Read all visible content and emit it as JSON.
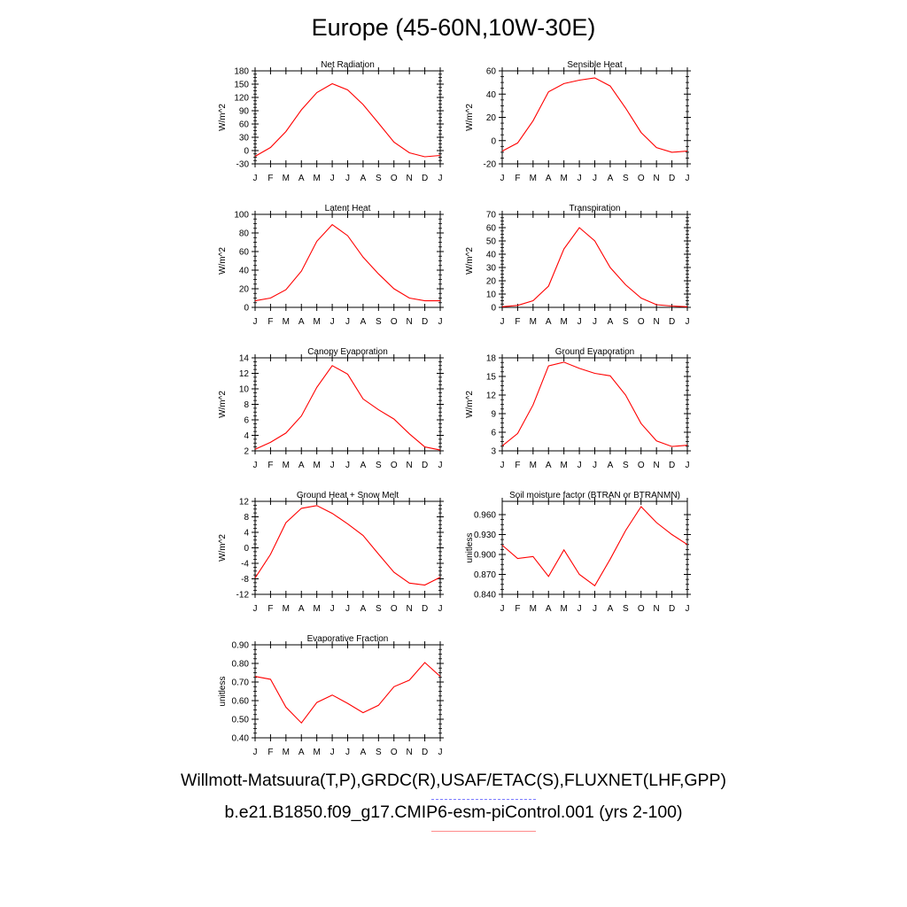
{
  "title": "Europe (45-60N,10W-30E)",
  "months": [
    "J",
    "F",
    "M",
    "A",
    "M",
    "J",
    "J",
    "A",
    "S",
    "O",
    "N",
    "D",
    "J"
  ],
  "legend": {
    "observations": "Willmott-Matsuura(T,P),GRDC(R),USAF/ETAC(S),FLUXNET(LHF,GPP)",
    "observations_color": "#7a7aff",
    "model": "b.e21.B1850.f09_g17.CMIP6-esm-piControl.001 (yrs 2-100)",
    "model_color": "#ff0000"
  },
  "line_color": "#ff0000",
  "chart_data": [
    {
      "type": "line",
      "title": "Net Radiation",
      "ylabel": "W/m^2",
      "ylim": [
        -30,
        180
      ],
      "yticks": [
        -30,
        0,
        30,
        60,
        90,
        120,
        150,
        180
      ],
      "ytick_labels": [
        "-30",
        "0",
        "30",
        "60",
        "90",
        "120",
        "150",
        "180"
      ],
      "series": [
        {
          "values": [
            -13,
            7,
            43,
            92,
            131,
            151,
            137,
            104,
            62,
            19,
            -5,
            -14,
            -11
          ]
        }
      ]
    },
    {
      "type": "line",
      "title": "Sensible Heat",
      "ylabel": "W/m^2",
      "ylim": [
        -20,
        60
      ],
      "yticks": [
        -20,
        0,
        20,
        40,
        60
      ],
      "ytick_labels": [
        "-20",
        "0",
        "20",
        "40",
        "60"
      ],
      "series": [
        {
          "values": [
            -9,
            -2,
            17,
            42,
            49,
            52,
            54,
            47,
            28,
            7,
            -6,
            -10,
            -9
          ]
        }
      ]
    },
    {
      "type": "line",
      "title": "Latent Heat",
      "ylabel": "W/m^2",
      "ylim": [
        0,
        100
      ],
      "yticks": [
        0,
        20,
        40,
        60,
        80,
        100
      ],
      "ytick_labels": [
        "0",
        "20",
        "40",
        "60",
        "80",
        "100"
      ],
      "series": [
        {
          "values": [
            7,
            10,
            19,
            39,
            71,
            89,
            77,
            54,
            36,
            20,
            10,
            7,
            7
          ]
        }
      ]
    },
    {
      "type": "line",
      "title": "Transpiration",
      "ylabel": "W/m^2",
      "ylim": [
        0,
        70
      ],
      "yticks": [
        0,
        10,
        20,
        30,
        40,
        50,
        60,
        70
      ],
      "ytick_labels": [
        "0",
        "10",
        "20",
        "30",
        "40",
        "50",
        "60",
        "70"
      ],
      "series": [
        {
          "values": [
            0.5,
            1.5,
            5,
            16,
            44,
            60,
            50,
            30,
            17,
            7,
            2,
            1,
            0.5
          ]
        }
      ]
    },
    {
      "type": "line",
      "title": "Canopy Evaporation",
      "ylabel": "W/m^2",
      "ylim": [
        2,
        14
      ],
      "yticks": [
        2,
        4,
        6,
        8,
        10,
        12,
        14
      ],
      "ytick_labels": [
        "2",
        "4",
        "6",
        "8",
        "10",
        "12",
        "14"
      ],
      "series": [
        {
          "values": [
            2.2,
            3.1,
            4.3,
            6.5,
            10.2,
            13,
            11.9,
            8.7,
            7.3,
            6.1,
            4.2,
            2.5,
            2.1
          ]
        }
      ]
    },
    {
      "type": "line",
      "title": "Ground Evaporation",
      "ylabel": "W/m^2",
      "ylim": [
        3,
        18
      ],
      "yticks": [
        3,
        6,
        9,
        12,
        15,
        18
      ],
      "ytick_labels": [
        "3",
        "6",
        "9",
        "12",
        "15",
        "18"
      ],
      "series": [
        {
          "values": [
            3.8,
            5.8,
            10.4,
            16.7,
            17.3,
            16.3,
            15.5,
            15.1,
            12,
            7.4,
            4.6,
            3.7,
            3.9
          ]
        }
      ]
    },
    {
      "type": "line",
      "title": "Ground Heat + Snow Melt",
      "ylabel": "W/m^2",
      "ylim": [
        -12,
        12
      ],
      "yticks": [
        -12,
        -8,
        -4,
        0,
        4,
        8,
        12
      ],
      "ytick_labels": [
        "-12",
        "-8",
        "-4",
        "0",
        "4",
        "8",
        "12"
      ],
      "series": [
        {
          "values": [
            -7.8,
            -1.7,
            6.5,
            10.2,
            10.9,
            8.9,
            6.2,
            3.2,
            -1.6,
            -6.3,
            -9.1,
            -9.6,
            -7.6
          ]
        }
      ]
    },
    {
      "type": "line",
      "title": "Soil moisture factor (BTRAN or BTRANMN)",
      "ylabel": "unitless",
      "ylim": [
        0.84,
        0.98
      ],
      "yticks": [
        0.84,
        0.87,
        0.9,
        0.93,
        0.96
      ],
      "ytick_labels": [
        "0.840",
        "0.870",
        "0.900",
        "0.930",
        "0.960"
      ],
      "series": [
        {
          "values": [
            0.914,
            0.894,
            0.897,
            0.867,
            0.907,
            0.87,
            0.853,
            0.893,
            0.936,
            0.972,
            0.948,
            0.93,
            0.915
          ]
        }
      ]
    },
    {
      "type": "line",
      "title": "Evaporative Fraction",
      "ylabel": "unitless",
      "ylim": [
        0.4,
        0.9
      ],
      "yticks": [
        0.4,
        0.5,
        0.6,
        0.7,
        0.8,
        0.9
      ],
      "ytick_labels": [
        "0.40",
        "0.50",
        "0.60",
        "0.70",
        "0.80",
        "0.90"
      ],
      "series": [
        {
          "values": [
            0.73,
            0.715,
            0.565,
            0.48,
            0.59,
            0.63,
            0.585,
            0.535,
            0.575,
            0.675,
            0.71,
            0.805,
            0.73
          ]
        }
      ]
    }
  ]
}
